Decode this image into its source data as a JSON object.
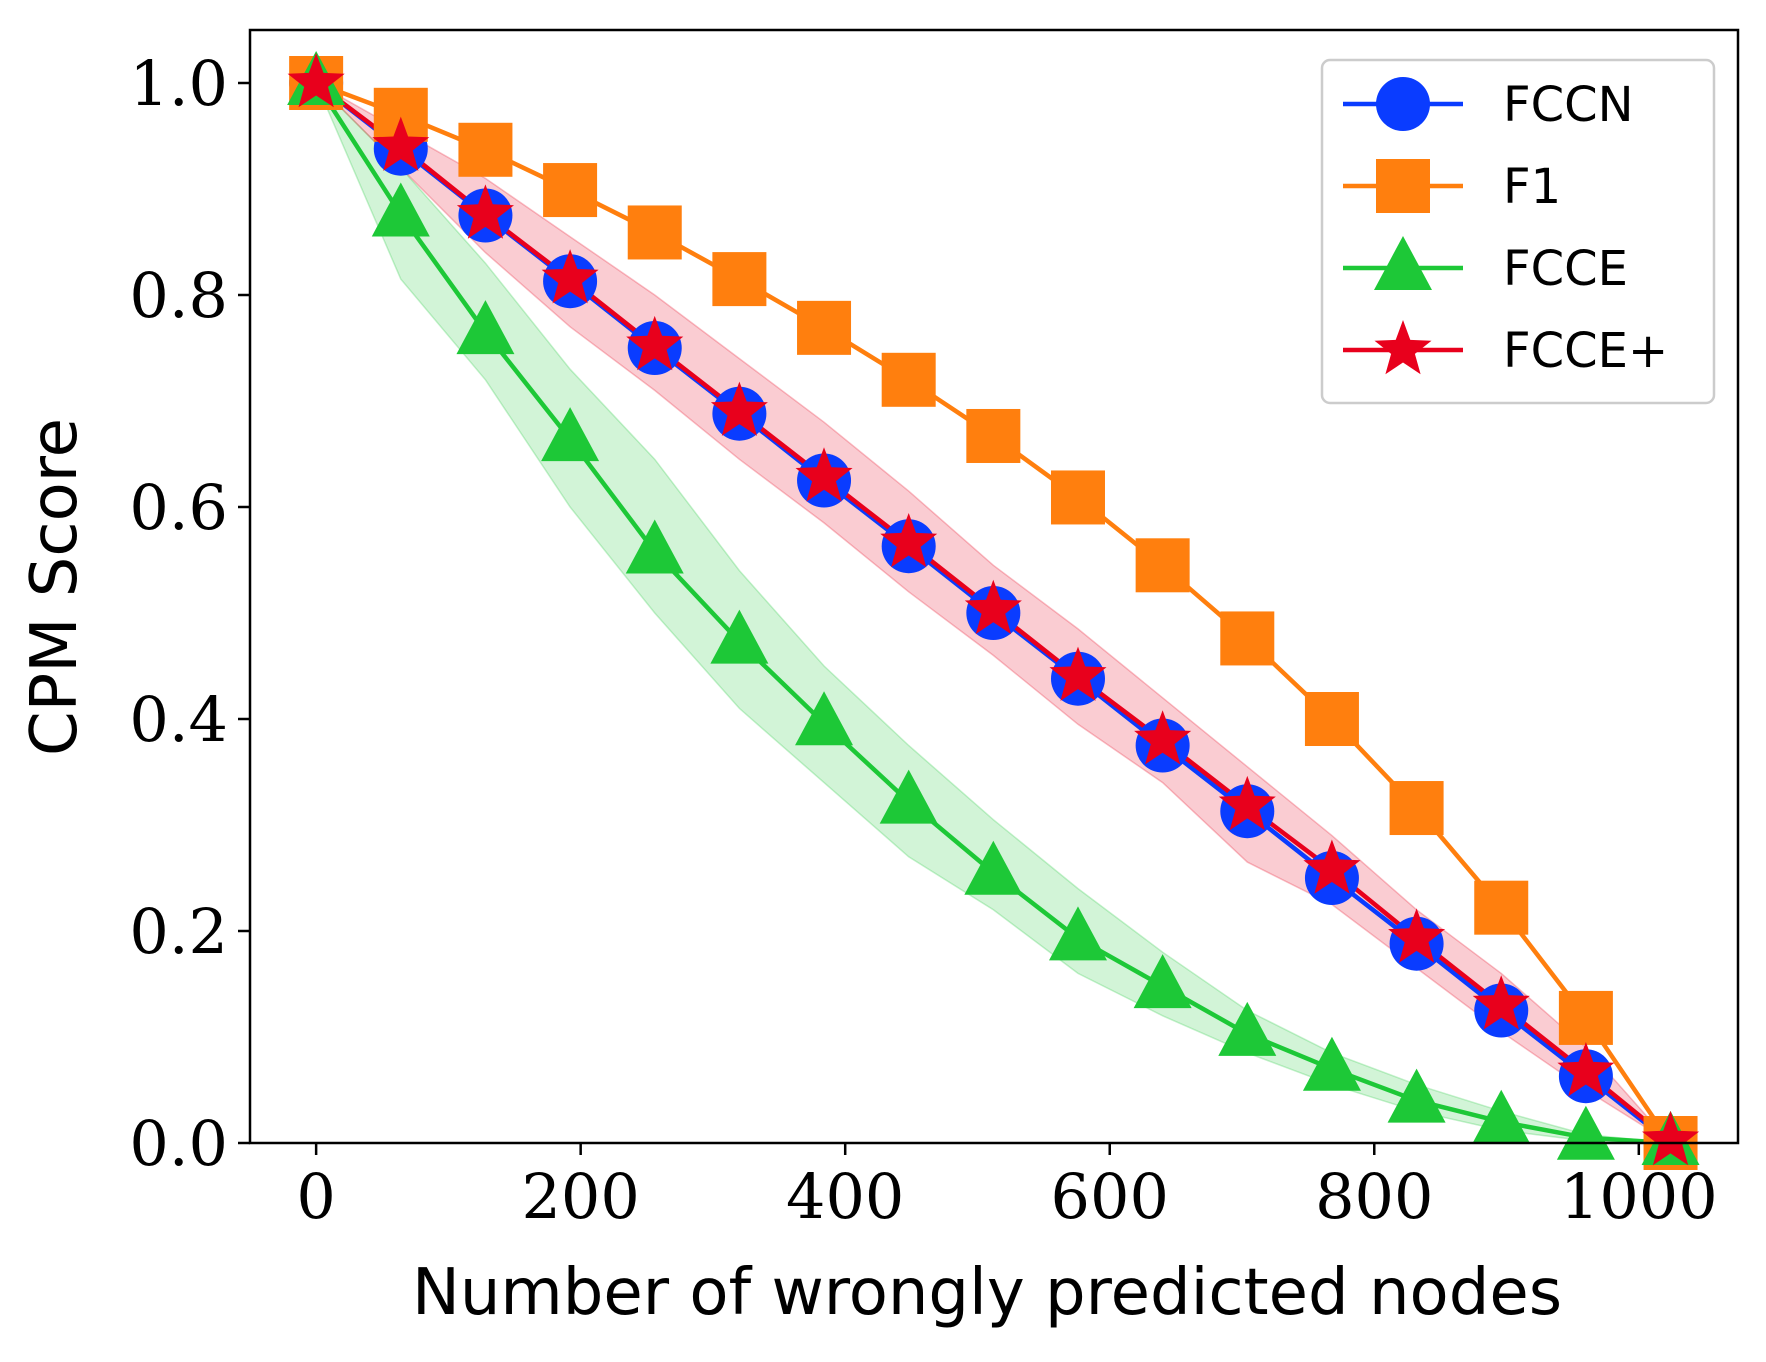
{
  "chart_data": {
    "type": "line",
    "xlabel": "Number of wrongly predicted nodes",
    "ylabel": "CPM Score",
    "xlim": [
      -50,
      1075
    ],
    "ylim": [
      0.0,
      1.05
    ],
    "xticks": [
      0,
      200,
      400,
      600,
      800,
      1000
    ],
    "xtick_labels": [
      "0",
      "200",
      "400",
      "600",
      "800",
      "1000"
    ],
    "yticks": [
      0.0,
      0.2,
      0.4,
      0.6,
      0.8,
      1.0
    ],
    "ytick_labels": [
      "0.0",
      "0.2",
      "0.4",
      "0.6",
      "0.8",
      "1.0"
    ],
    "legend_position": "top-right",
    "x": [
      0,
      64,
      128,
      192,
      256,
      320,
      384,
      448,
      512,
      576,
      640,
      704,
      768,
      832,
      896,
      960,
      1024
    ],
    "series": [
      {
        "name": "FCCN",
        "color": "#0a3cff",
        "marker": "circle",
        "values": [
          1.0,
          0.938,
          0.875,
          0.813,
          0.75,
          0.688,
          0.625,
          0.563,
          0.5,
          0.438,
          0.375,
          0.313,
          0.25,
          0.188,
          0.125,
          0.063,
          0.0
        ]
      },
      {
        "name": "F1",
        "color": "#ff7f0e",
        "marker": "square",
        "values": [
          1.0,
          0.97,
          0.937,
          0.899,
          0.859,
          0.815,
          0.769,
          0.72,
          0.667,
          0.609,
          0.545,
          0.476,
          0.4,
          0.316,
          0.222,
          0.118,
          0.0
        ]
      },
      {
        "name": "FCCE",
        "color": "#1dc837",
        "marker": "triangle",
        "band": [
          [
            1.0,
            1.0
          ],
          [
            0.815,
            0.92
          ],
          [
            0.72,
            0.83
          ],
          [
            0.6,
            0.73
          ],
          [
            0.5,
            0.645
          ],
          [
            0.41,
            0.54
          ],
          [
            0.34,
            0.45
          ],
          [
            0.27,
            0.375
          ],
          [
            0.22,
            0.305
          ],
          [
            0.16,
            0.24
          ],
          [
            0.12,
            0.18
          ],
          [
            0.085,
            0.125
          ],
          [
            0.055,
            0.085
          ],
          [
            0.03,
            0.055
          ],
          [
            0.012,
            0.03
          ],
          [
            0.002,
            0.008
          ],
          [
            0.0,
            0.0
          ]
        ],
        "values": [
          1.0,
          0.876,
          0.765,
          0.664,
          0.558,
          0.473,
          0.396,
          0.322,
          0.255,
          0.193,
          0.148,
          0.103,
          0.07,
          0.04,
          0.02,
          0.005,
          0.0
        ]
      },
      {
        "name": "FCCE+",
        "color": "#e8001c",
        "marker": "star",
        "band": [
          [
            1.0,
            1.0
          ],
          [
            0.92,
            0.955
          ],
          [
            0.84,
            0.91
          ],
          [
            0.77,
            0.855
          ],
          [
            0.71,
            0.8
          ],
          [
            0.645,
            0.74
          ],
          [
            0.585,
            0.68
          ],
          [
            0.52,
            0.615
          ],
          [
            0.46,
            0.545
          ],
          [
            0.395,
            0.485
          ],
          [
            0.34,
            0.42
          ],
          [
            0.265,
            0.355
          ],
          [
            0.225,
            0.29
          ],
          [
            0.165,
            0.22
          ],
          [
            0.105,
            0.16
          ],
          [
            0.05,
            0.09
          ],
          [
            0.0,
            0.0
          ]
        ],
        "values": [
          1.0,
          0.94,
          0.876,
          0.815,
          0.752,
          0.69,
          0.628,
          0.566,
          0.503,
          0.44,
          0.38,
          0.318,
          0.258,
          0.193,
          0.13,
          0.067,
          0.002
        ]
      }
    ]
  }
}
